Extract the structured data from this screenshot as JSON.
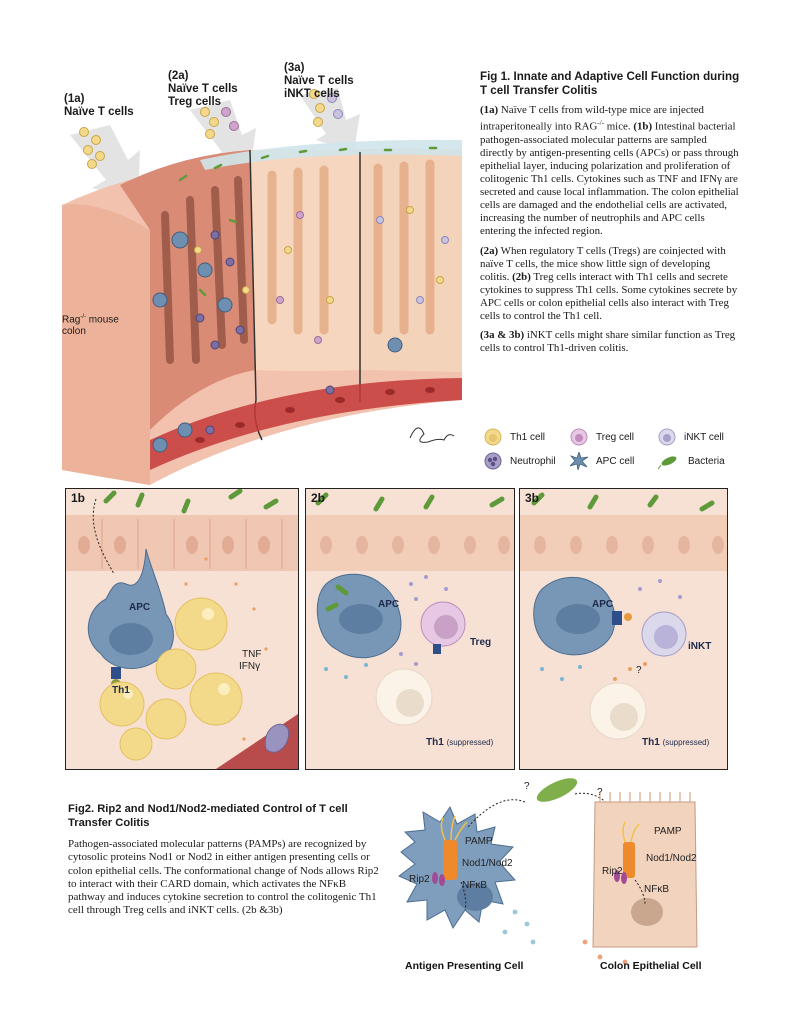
{
  "labels": {
    "l1a_code": "(1a)",
    "l1a_cells": "Naïve T cells",
    "l2a_code": "(2a)",
    "l2a_cells1": "Naïve T cells",
    "l2a_cells2": "Treg cells",
    "l3a_code": "(3a)",
    "l3a_cells1": "Naïve T cells",
    "l3a_cells2": "iNKT cells",
    "rag_line1": "Rag",
    "rag_sup": "-/-",
    "rag_line1_rest": " mouse",
    "rag_line2": "colon"
  },
  "fig1": {
    "title": "Fig 1. Innate and Adaptive Cell Function during T cell Transfer Colitis",
    "p1_code": "(1a)",
    "p1_a": " Naïve T cells from wild-type mice are injected intraperitoneally into RAG",
    "p1_sup": "-/-",
    "p1_b": " mice. ",
    "p1_code2": "(1b)",
    "p1_c": " Intestinal bacterial pathogen-associated molecular patterns are sampled directly by antigen-presenting cells (APCs) or pass through epithelial layer, inducing polarization and proliferation of colitogenic Th1 cells. Cytokines such as TNF and IFNγ are secreted and cause local inflammation. The colon epithelial cells are damaged and the endothelial cells are activated, increasing the number of neutrophils and APC cells entering the infected region.",
    "p2_code": "(2a)",
    "p2_a": " When regulatory T cells (Tregs) are coinjected with naïve T cells, the mice show little sign of developing colitis. ",
    "p2_code2": "(2b)",
    "p2_b": " Treg cells interact with Th1 cells and secrete cytokines to suppress Th1 cells. Some cytokines secrete by APC cells or colon epithelial cells also interact with Treg cells to control the Th1 cell.",
    "p3_code": "(3a & 3b)",
    "p3_a": " iNKT cells might share similar function as Treg cells to control Th1-driven colitis."
  },
  "legend": {
    "th1": "Th1 cell",
    "treg": "Treg cell",
    "inkt": "iNKT cell",
    "neutrophil": "Neutrophil",
    "apc": "APC cell",
    "bacteria": "Bacteria"
  },
  "panels": {
    "p1b": {
      "label": "1b",
      "apc": "APC",
      "th1": "Th1",
      "tnf": "TNF",
      "ifng": "IFNγ"
    },
    "p2b": {
      "label": "2b",
      "apc": "APC",
      "treg": "Treg",
      "th1": "Th1",
      "suppressed": "(suppressed)"
    },
    "p3b": {
      "label": "3b",
      "apc": "APC",
      "inkt": "iNKT",
      "th1": "Th1",
      "suppressed": "(suppressed)",
      "q": "?"
    }
  },
  "fig2": {
    "title": "Fig2. Rip2 and Nod1/Nod2-mediated Control of T cell Transfer Colitis",
    "body": "Pathogen-associated molecular patterns (PAMPs) are recognized by cytosolic proteins Nod1 or Nod2 in either antigen presenting cells or colon epithelial cells. The conformational change of Nods allows Rip2 to interact with their CARD domain, which activates the NFκB pathway and induces cytokine secretion to control the colitogenic Th1 cell through Treg cells and iNKT cells. (2b &3b)",
    "apc_pamp": "PAMP",
    "apc_nod": "Nod1/Nod2",
    "apc_rip2": "Rip2",
    "apc_nfkb": "NFκB",
    "apc_caption": "Antigen Presenting Cell",
    "epi_pamp": "PAMP",
    "epi_nod": "Nod1/Nod2",
    "epi_rip2": "Rip2",
    "epi_nfkb": "NFκB",
    "epi_caption": "Colon Epithelial Cell",
    "q1": "?",
    "q2": "?"
  },
  "colors": {
    "th1": "#f3d98a",
    "treg": "#cfa3cc",
    "inkt": "#c9c3df",
    "neutrophil": "#7b6fa3",
    "apc": "#6e8fb0",
    "bacteria": "#5f9a3a",
    "tissue": "#e9a28c",
    "blood": "#c53a3a"
  }
}
